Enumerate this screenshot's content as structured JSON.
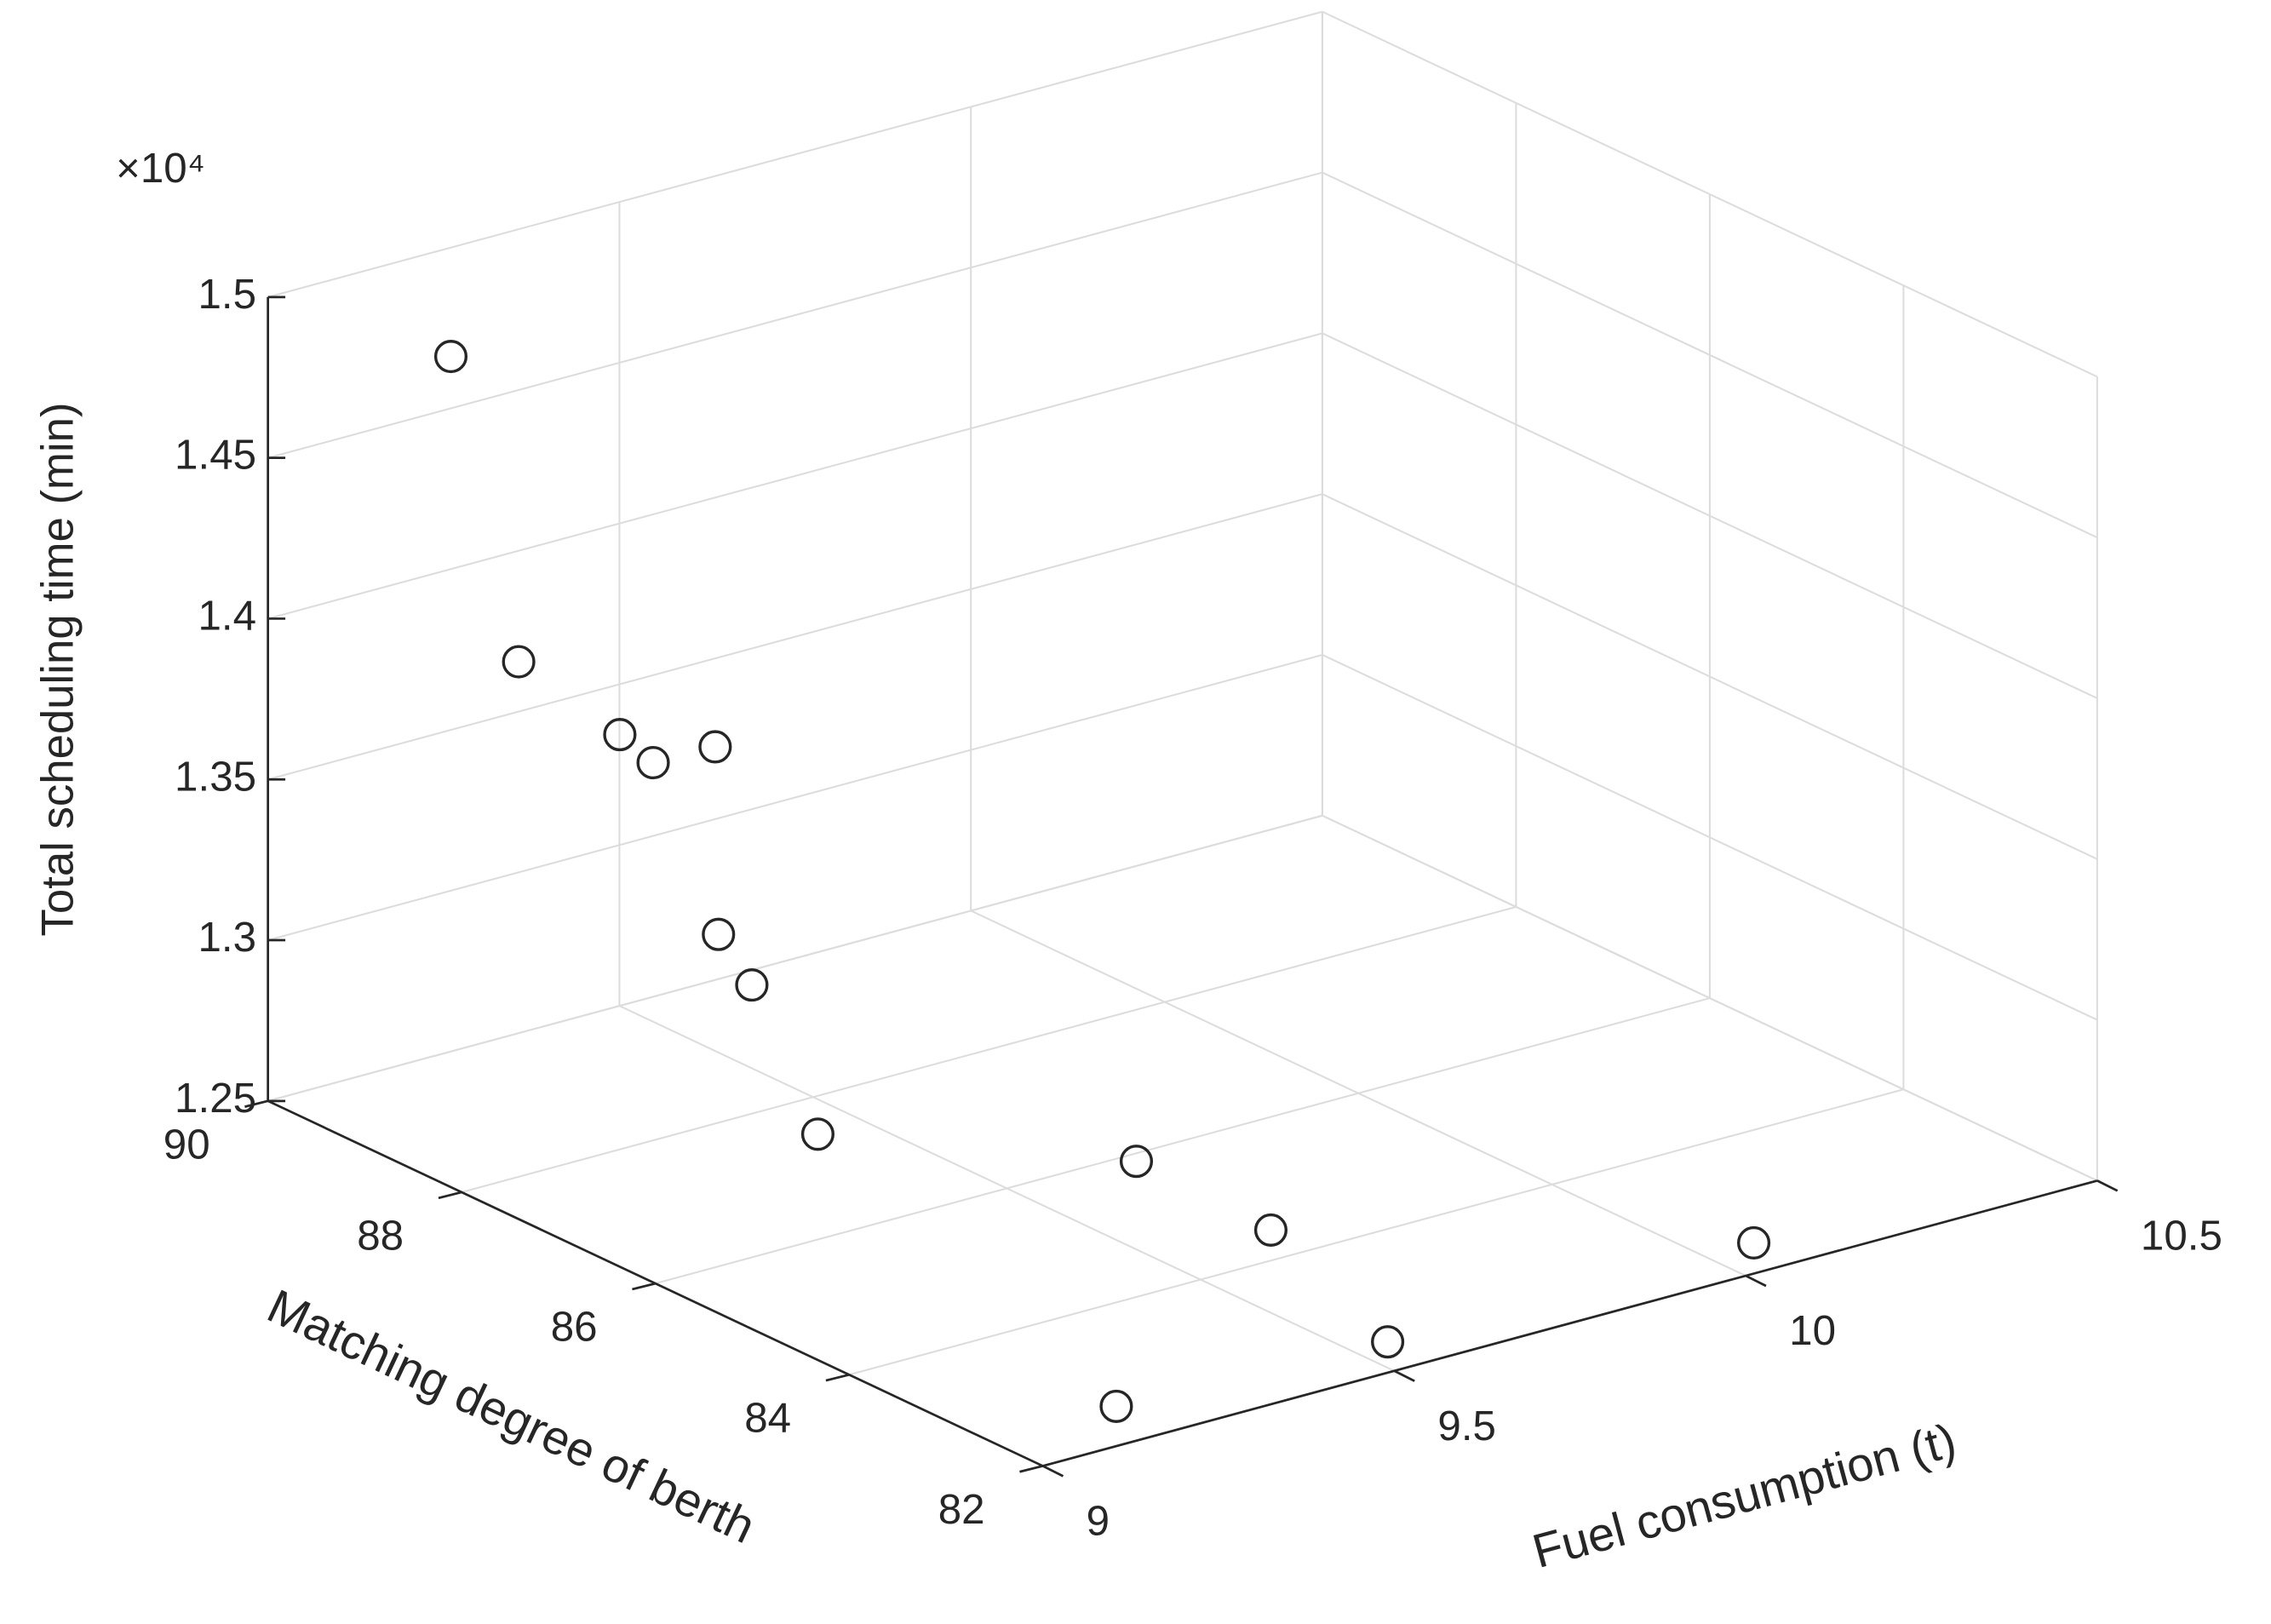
{
  "chart_data": {
    "type": "scatter3d",
    "zlabel": "Total scheduling time (min)",
    "ylabel": "Matching degree of berth",
    "xlabel": "Fuel consumption (t)",
    "z_multiplier": "×10⁴",
    "x": [
      9.15,
      9.15,
      9.225,
      9.3,
      9.3,
      9.375,
      9.45,
      9.3,
      9.45,
      9.6,
      10.05,
      9.525,
      9.15
    ],
    "y": [
      89.2,
      88.5,
      88.0,
      88.2,
      87.56,
      88.07,
      88.27,
      86.5,
      84.3,
      84.0,
      82.28,
      82.25,
      82.33
    ],
    "z": [
      1.484,
      1.399,
      1.379,
      1.363,
      1.377,
      1.307,
      1.284,
      1.2716,
      1.2855,
      1.2595,
      1.2533,
      1.254,
      1.255
    ],
    "color": "#262626",
    "xlim": [
      9,
      10.5
    ],
    "xticks": [
      9,
      9.5,
      10,
      10.5
    ],
    "ylim": [
      82,
      90
    ],
    "yticks": [
      82,
      84,
      86,
      88,
      90
    ],
    "zlim": [
      1.25,
      1.5
    ],
    "zticks": [
      1.25,
      1.3,
      1.35,
      1.4,
      1.45,
      1.5
    ],
    "grid": true
  }
}
